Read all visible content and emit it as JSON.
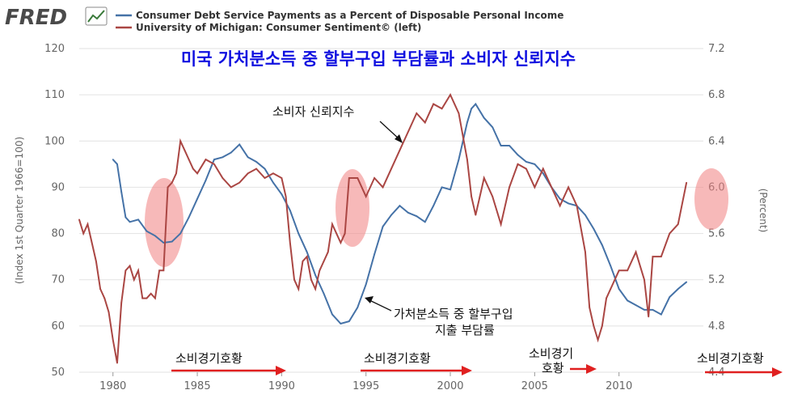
{
  "brand": "FRED",
  "legend": [
    {
      "label": "Consumer Debt Service Payments as a Percent of Disposable Personal Income",
      "color": "#4572a7"
    },
    {
      "label": "University of Michigan: Consumer Sentiment© (left)",
      "color": "#aa4643"
    }
  ],
  "overlay_title": "미국 가처분소득 중 할부구입 부담률과 소비자 신뢰지수",
  "annotations": {
    "sentiment_label": "소비자 신뢰지수",
    "debt_label_line1": "가처분소득 중 할부구입",
    "debt_label_line2": "지출 부담률",
    "boom_1": "소비경기호황",
    "boom_2": "소비경기호황",
    "boom_3_line1": "소비경기",
    "boom_3_line2": "호황",
    "boom_4": "소비경기호황"
  },
  "colors": {
    "debt": "#4572a7",
    "sentiment": "#aa4643",
    "overlay_title": "#1010e0",
    "arrow": "#e02020",
    "highlight": "#f08080",
    "axis_text": "#666666",
    "grid": "#e2e2e2"
  },
  "chart_data": {
    "type": "line",
    "x_range": [
      1978,
      2015
    ],
    "x_ticks": [
      "1980",
      "1985",
      "1990",
      "1995",
      "2000",
      "2005",
      "2010"
    ],
    "y_left": {
      "label": "(Index 1st Quarter 1966=100)",
      "range": [
        50,
        120
      ],
      "ticks": [
        "50",
        "60",
        "70",
        "80",
        "90",
        "100",
        "110",
        "120"
      ]
    },
    "y_right": {
      "label": "(Percent)",
      "range": [
        4.4,
        7.2
      ],
      "ticks": [
        "4.4",
        "4.8",
        "5.2",
        "5.6",
        "6.0",
        "6.4",
        "6.8",
        "7.2"
      ]
    },
    "grid": true,
    "series": [
      {
        "name": "Consumer Debt Service Payments as a Percent of Disposable Personal Income",
        "axis": "right",
        "x": [
          1980.0,
          1980.25,
          1980.5,
          1980.75,
          1981.0,
          1981.5,
          1982.0,
          1982.5,
          1983.0,
          1983.5,
          1984.0,
          1984.5,
          1985.0,
          1985.5,
          1986.0,
          1986.5,
          1987.0,
          1987.5,
          1988.0,
          1988.5,
          1989.0,
          1989.5,
          1990.0,
          1990.5,
          1991.0,
          1991.5,
          1992.0,
          1992.5,
          1993.0,
          1993.5,
          1994.0,
          1994.5,
          1995.0,
          1995.5,
          1996.0,
          1996.5,
          1997.0,
          1997.5,
          1998.0,
          1998.5,
          1999.0,
          1999.5,
          2000.0,
          2000.5,
          2001.0,
          2001.25,
          2001.5,
          2002.0,
          2002.5,
          2003.0,
          2003.5,
          2004.0,
          2004.5,
          2005.0,
          2005.5,
          2006.0,
          2006.5,
          2007.0,
          2007.5,
          2008.0,
          2008.5,
          2009.0,
          2009.5,
          2010.0,
          2010.5,
          2011.0,
          2011.5,
          2012.0,
          2012.5,
          2013.0,
          2013.5,
          2014.0
        ],
        "values": [
          6.24,
          6.2,
          5.96,
          5.74,
          5.7,
          5.72,
          5.62,
          5.58,
          5.52,
          5.53,
          5.6,
          5.74,
          5.9,
          6.06,
          6.24,
          6.26,
          6.3,
          6.37,
          6.26,
          6.22,
          6.16,
          6.04,
          5.94,
          5.8,
          5.6,
          5.44,
          5.24,
          5.08,
          4.9,
          4.82,
          4.84,
          4.96,
          5.16,
          5.42,
          5.66,
          5.76,
          5.84,
          5.78,
          5.75,
          5.7,
          5.84,
          6.0,
          5.98,
          6.24,
          6.56,
          6.68,
          6.72,
          6.6,
          6.52,
          6.36,
          6.36,
          6.28,
          6.22,
          6.2,
          6.12,
          6.0,
          5.9,
          5.86,
          5.84,
          5.76,
          5.64,
          5.5,
          5.32,
          5.12,
          5.02,
          4.98,
          4.94,
          4.94,
          4.9,
          5.05,
          5.12,
          5.18
        ]
      },
      {
        "name": "University of Michigan: Consumer Sentiment© (left)",
        "axis": "left",
        "x": [
          1978.0,
          1978.25,
          1978.5,
          1978.75,
          1979.0,
          1979.25,
          1979.5,
          1979.75,
          1980.0,
          1980.25,
          1980.5,
          1980.75,
          1981.0,
          1981.25,
          1981.5,
          1981.75,
          1982.0,
          1982.25,
          1982.5,
          1982.75,
          1983.0,
          1983.25,
          1983.5,
          1983.75,
          1984.0,
          1984.25,
          1984.5,
          1984.75,
          1985.0,
          1985.5,
          1986.0,
          1986.5,
          1987.0,
          1987.5,
          1988.0,
          1988.5,
          1989.0,
          1989.5,
          1990.0,
          1990.25,
          1990.5,
          1990.75,
          1991.0,
          1991.25,
          1991.5,
          1991.75,
          1992.0,
          1992.25,
          1992.5,
          1992.75,
          1993.0,
          1993.25,
          1993.5,
          1993.75,
          1994.0,
          1994.5,
          1995.0,
          1995.5,
          1996.0,
          1996.5,
          1997.0,
          1997.5,
          1998.0,
          1998.5,
          1999.0,
          1999.5,
          2000.0,
          2000.5,
          2001.0,
          2001.25,
          2001.5,
          2001.75,
          2002.0,
          2002.5,
          2003.0,
          2003.5,
          2004.0,
          2004.5,
          2005.0,
          2005.5,
          2006.0,
          2006.5,
          2007.0,
          2007.5,
          2008.0,
          2008.25,
          2008.5,
          2008.75,
          2009.0,
          2009.25,
          2009.5,
          2010.0,
          2010.5,
          2011.0,
          2011.5,
          2011.75,
          2012.0,
          2012.5,
          2013.0,
          2013.5,
          2014.0
        ],
        "values": [
          83,
          80,
          82,
          78,
          74,
          68,
          66,
          63,
          57,
          52,
          65,
          72,
          73,
          70,
          72,
          66,
          66,
          67,
          66,
          72,
          72,
          90,
          91,
          93,
          100,
          98,
          96,
          94,
          93,
          96,
          95,
          92,
          90,
          91,
          93,
          94,
          92,
          93,
          92,
          88,
          78,
          70,
          68,
          74,
          75,
          70,
          68,
          72,
          74,
          76,
          82,
          80,
          78,
          80,
          92,
          92,
          88,
          92,
          90,
          94,
          98,
          102,
          106,
          104,
          108,
          107,
          110,
          106,
          96,
          88,
          84,
          88,
          92,
          88,
          82,
          90,
          95,
          94,
          90,
          94,
          90,
          86,
          90,
          86,
          76,
          64,
          60,
          57,
          60,
          66,
          68,
          72,
          72,
          76,
          70,
          62,
          75,
          75,
          80,
          82,
          91
        ]
      }
    ]
  }
}
